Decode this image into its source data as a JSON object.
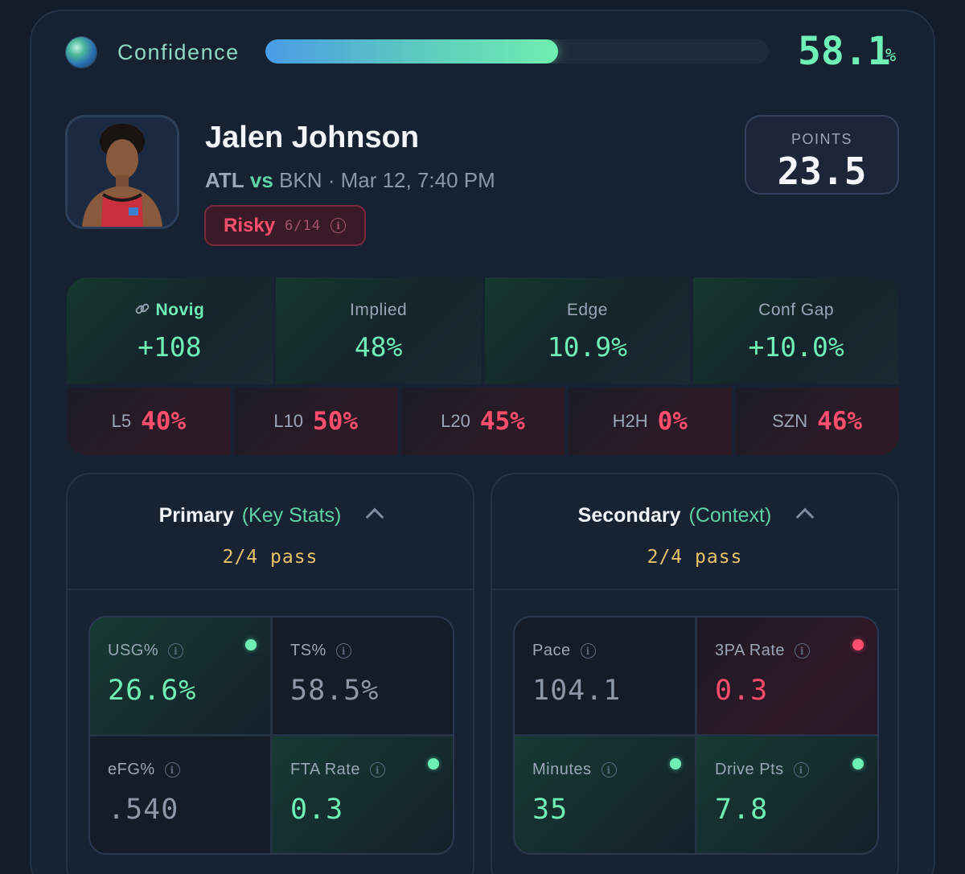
{
  "confidence": {
    "label": "Confidence",
    "value": "58.1",
    "unit": "%",
    "fraction": 0.581
  },
  "player": {
    "name": "Jalen Johnson",
    "team": "ATL",
    "vs_label": "vs",
    "opponent": "BKN",
    "datetime": "· Mar 12, 7:40 PM",
    "tag": {
      "label": "Risky",
      "count": "6/14"
    }
  },
  "prop": {
    "label": "POINTS",
    "line": "23.5"
  },
  "odds": [
    {
      "label": "Novig",
      "value": "+108"
    },
    {
      "label": "Implied",
      "value": "48%"
    },
    {
      "label": "Edge",
      "value": "10.9%"
    },
    {
      "label": "Conf Gap",
      "value": "+10.0%"
    }
  ],
  "hit_rates": [
    {
      "label": "L5",
      "value": "40%"
    },
    {
      "label": "L10",
      "value": "50%"
    },
    {
      "label": "L20",
      "value": "45%"
    },
    {
      "label": "H2H",
      "value": "0%"
    },
    {
      "label": "SZN",
      "value": "46%"
    }
  ],
  "primary": {
    "title": "Primary",
    "subtitle": "(Key Stats)",
    "pass": "2/4 pass",
    "stats": [
      {
        "label": "USG%",
        "value": "26.6%",
        "status": "pass"
      },
      {
        "label": "TS%",
        "value": "58.5%",
        "status": "neutral"
      },
      {
        "label": "eFG%",
        "value": ".540",
        "status": "neutral"
      },
      {
        "label": "FTA Rate",
        "value": "0.3",
        "status": "pass"
      }
    ]
  },
  "secondary": {
    "title": "Secondary",
    "subtitle": "(Context)",
    "pass": "2/4 pass",
    "stats": [
      {
        "label": "Pace",
        "value": "104.1",
        "status": "neutral"
      },
      {
        "label": "3PA Rate",
        "value": "0.3",
        "status": "fail"
      },
      {
        "label": "Minutes",
        "value": "35",
        "status": "pass"
      },
      {
        "label": "Drive Pts",
        "value": "7.8",
        "status": "pass"
      }
    ]
  },
  "colors": {
    "accent_green": "#6ff0b6",
    "accent_red": "#ff4d6e",
    "accent_gold": "#e8c36a"
  }
}
